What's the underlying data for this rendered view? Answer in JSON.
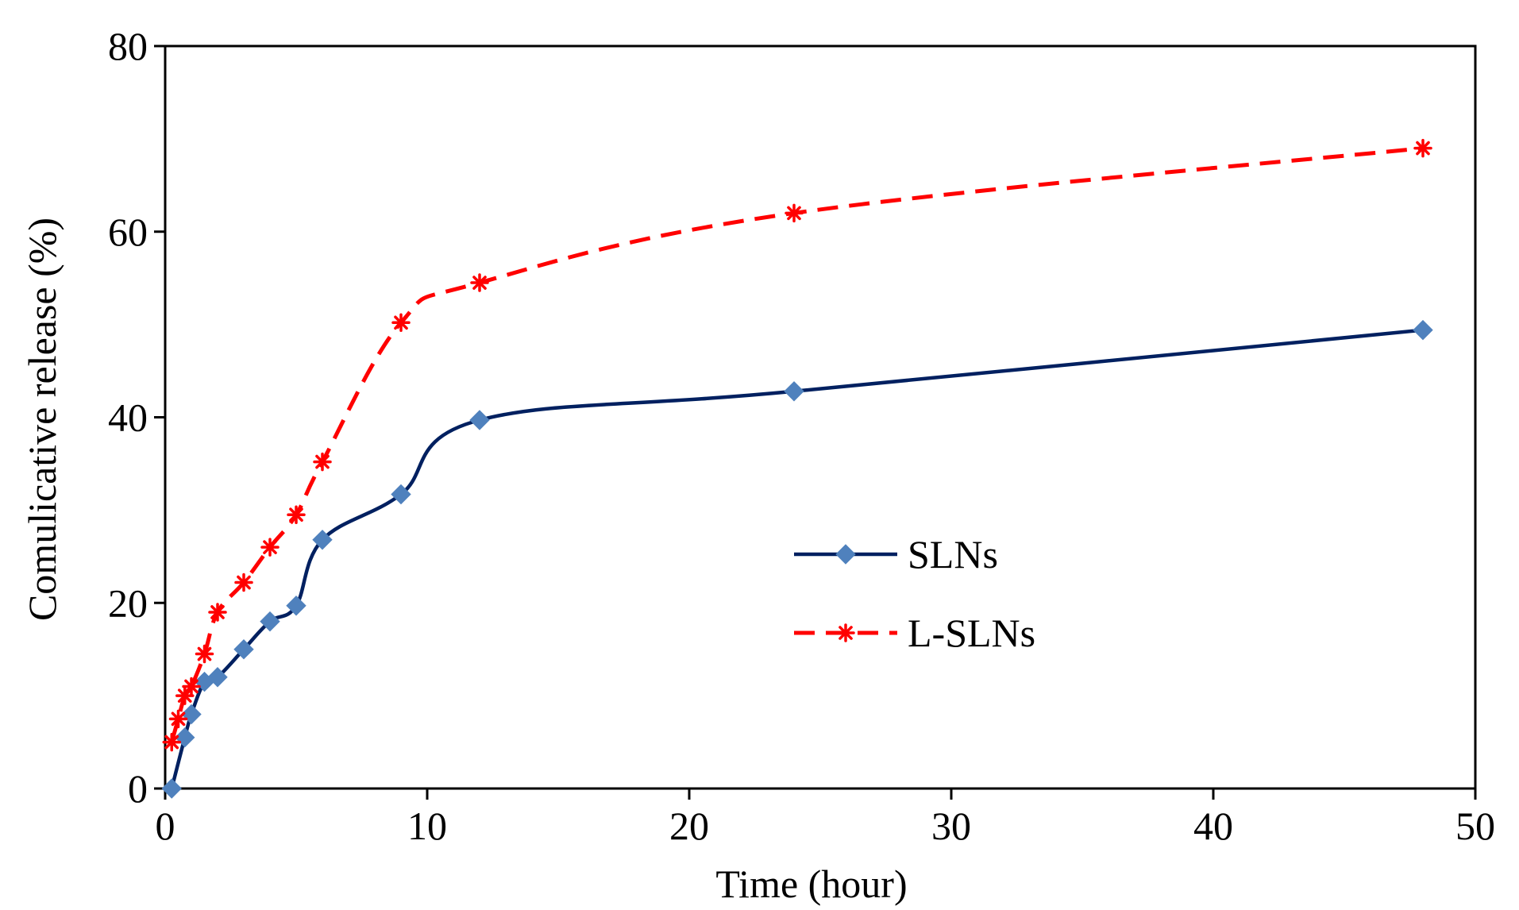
{
  "chart_data": {
    "type": "line",
    "title": "",
    "xlabel": "Time (hour)",
    "ylabel": "Comulicative release (%)",
    "xlim": [
      0,
      50
    ],
    "ylim": [
      0,
      80
    ],
    "xticks": [
      0,
      10,
      20,
      30,
      40,
      50
    ],
    "yticks": [
      0,
      20,
      40,
      60,
      80
    ],
    "grid": false,
    "legend_position": "center-right",
    "series": [
      {
        "name": "SLNs",
        "color": "#002060",
        "marker": "diamond",
        "marker_color": "#4F81BD",
        "line_style": "solid",
        "x": [
          0.25,
          0.75,
          1,
          1.5,
          2,
          3,
          4,
          5,
          6,
          9,
          12,
          24,
          48
        ],
        "y": [
          0,
          5.5,
          8,
          11.5,
          12,
          15,
          18,
          19.7,
          26.8,
          31.7,
          39.7,
          42.8,
          49.4
        ]
      },
      {
        "name": "L-SLNs",
        "color": "#FF0000",
        "marker": "star",
        "marker_color": "#FF0000",
        "line_style": "dashed",
        "x": [
          0.25,
          0.5,
          0.75,
          1,
          1.5,
          2,
          3,
          4,
          5,
          6,
          9,
          12,
          24,
          48
        ],
        "y": [
          5,
          7.5,
          10,
          11,
          14.5,
          19,
          22.2,
          26,
          29.5,
          35.2,
          50.2,
          54.5,
          62,
          69
        ]
      }
    ]
  }
}
